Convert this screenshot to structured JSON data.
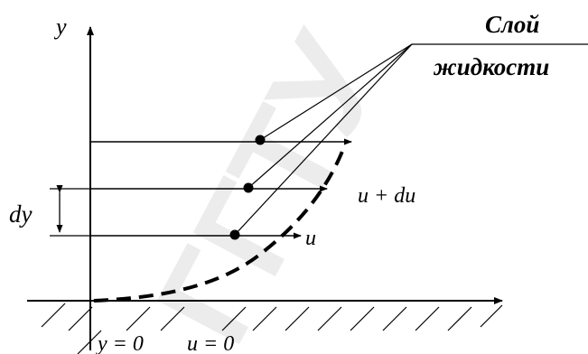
{
  "diagram": {
    "y_axis_label": "y",
    "layer_label_line1": "Слой",
    "layer_label_line2": "жидкости",
    "dy_label": "dy",
    "u_plus_du_label": "u + du",
    "u_label": "u",
    "y_zero_label": "y = 0",
    "u_zero_label": "u = 0",
    "watermark_text": "ГГТУ"
  },
  "colors": {
    "ink": "#000000",
    "watermark": "#c9c9c9"
  }
}
